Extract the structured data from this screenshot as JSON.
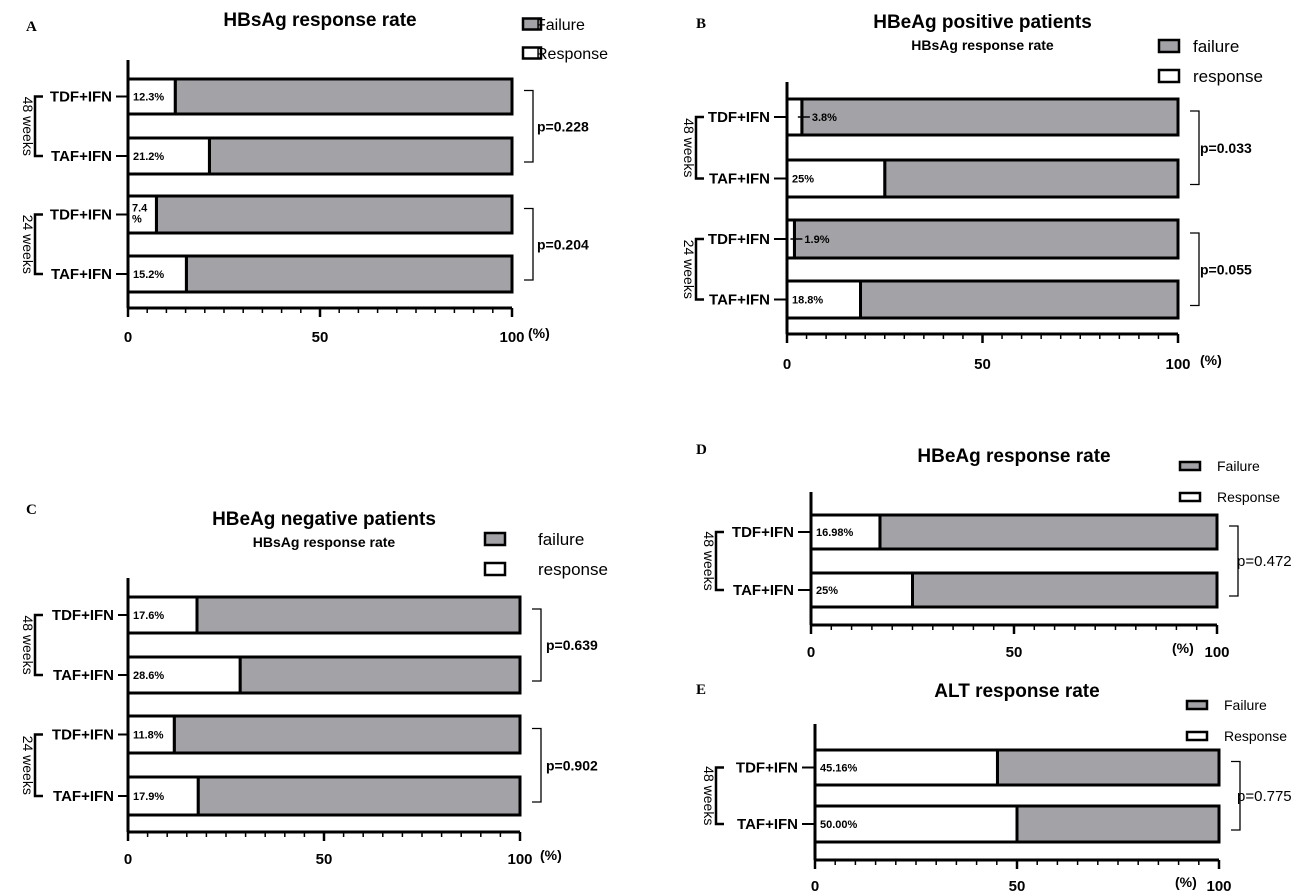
{
  "chart_data": [
    {
      "panel": "A",
      "type": "bar",
      "orientation": "horizontal",
      "stacked": true,
      "title": "HBsAg response rate",
      "subtitle": "",
      "xlabel": "",
      "unit": "(%)",
      "xlim": [
        0,
        100
      ],
      "xticks": [
        "0",
        "50",
        "100"
      ],
      "legend": {
        "position": "top-right",
        "entries": [
          {
            "label": "Failure",
            "color": "#a3a3a7"
          },
          {
            "label": "Response",
            "color": "#ffffff"
          }
        ]
      },
      "groups": [
        {
          "label": "48 weeks",
          "p_value": "p=0.228",
          "bars": [
            {
              "category": "TDF+IFN",
              "response": 12.3,
              "failure": 87.7,
              "label": "12.3%"
            },
            {
              "category": "TAF+IFN",
              "response": 21.2,
              "failure": 78.8,
              "label": "21.2%"
            }
          ]
        },
        {
          "label": "24 weeks",
          "p_value": "p=0.204",
          "bars": [
            {
              "category": "TDF+IFN",
              "response": 7.4,
              "failure": 92.6,
              "label": "7.4\n%"
            },
            {
              "category": "TAF+IFN",
              "response": 15.2,
              "failure": 84.8,
              "label": "15.2%"
            }
          ]
        }
      ]
    },
    {
      "panel": "B",
      "type": "bar",
      "orientation": "horizontal",
      "stacked": true,
      "title": "HBeAg positive patients",
      "subtitle": "HBsAg response rate",
      "xlabel": "",
      "unit": "(%)",
      "xlim": [
        0,
        100
      ],
      "xticks": [
        "0",
        "50",
        "100"
      ],
      "legend": {
        "position": "top-right",
        "entries": [
          {
            "label": "failure",
            "color": "#a3a3a7"
          },
          {
            "label": "response",
            "color": "#ffffff"
          }
        ]
      },
      "groups": [
        {
          "label": "48 weeks",
          "p_value": "p=0.033",
          "bars": [
            {
              "category": "TDF+IFN",
              "response": 3.8,
              "failure": 96.2,
              "label": "3.8%"
            },
            {
              "category": "TAF+IFN",
              "response": 25,
              "failure": 75,
              "label": "25%"
            }
          ]
        },
        {
          "label": "24 weeks",
          "p_value": "p=0.055",
          "bars": [
            {
              "category": "TDF+IFN",
              "response": 1.9,
              "failure": 98.1,
              "label": "1.9%"
            },
            {
              "category": "TAF+IFN",
              "response": 18.8,
              "failure": 81.2,
              "label": "18.8%"
            }
          ]
        }
      ]
    },
    {
      "panel": "C",
      "type": "bar",
      "orientation": "horizontal",
      "stacked": true,
      "title": "HBeAg negative patients",
      "subtitle": "HBsAg response rate",
      "xlabel": "",
      "unit": "(%)",
      "xlim": [
        0,
        100
      ],
      "xticks": [
        "0",
        "50",
        "100"
      ],
      "legend": {
        "position": "top-right",
        "entries": [
          {
            "label": "failure",
            "color": "#a3a3a7"
          },
          {
            "label": "response",
            "color": "#ffffff"
          }
        ]
      },
      "groups": [
        {
          "label": "48 weeks",
          "p_value": "p=0.639",
          "bars": [
            {
              "category": "TDF+IFN",
              "response": 17.6,
              "failure": 82.4,
              "label": "17.6%"
            },
            {
              "category": "TAF+IFN",
              "response": 28.6,
              "failure": 71.4,
              "label": "28.6%"
            }
          ]
        },
        {
          "label": "24 weeks",
          "p_value": "p=0.902",
          "bars": [
            {
              "category": "TDF+IFN",
              "response": 11.8,
              "failure": 88.2,
              "label": "11.8%"
            },
            {
              "category": "TAF+IFN",
              "response": 17.9,
              "failure": 82.1,
              "label": "17.9%"
            }
          ]
        }
      ]
    },
    {
      "panel": "D",
      "type": "bar",
      "orientation": "horizontal",
      "stacked": true,
      "title": "HBeAg response rate",
      "subtitle": "",
      "xlabel": "",
      "unit": "(%)",
      "xlim": [
        0,
        100
      ],
      "xticks": [
        "0",
        "50",
        "100"
      ],
      "legend": {
        "position": "top-right",
        "entries": [
          {
            "label": "Failure",
            "color": "#a3a3a7"
          },
          {
            "label": "Response",
            "color": "#ffffff"
          }
        ]
      },
      "groups": [
        {
          "label": "48 weeks",
          "p_value": "p=0.472",
          "bars": [
            {
              "category": "TDF+IFN",
              "response": 16.98,
              "failure": 83.02,
              "label": "16.98%"
            },
            {
              "category": "TAF+IFN",
              "response": 25,
              "failure": 75,
              "label": "25%"
            }
          ]
        }
      ]
    },
    {
      "panel": "E",
      "type": "bar",
      "orientation": "horizontal",
      "stacked": true,
      "title": "ALT response rate",
      "subtitle": "",
      "xlabel": "",
      "unit": "(%)",
      "xlim": [
        0,
        100
      ],
      "xticks": [
        "0",
        "50",
        "100"
      ],
      "legend": {
        "position": "top-right",
        "entries": [
          {
            "label": "Failure",
            "color": "#a3a3a7"
          },
          {
            "label": "Response",
            "color": "#ffffff"
          }
        ]
      },
      "groups": [
        {
          "label": "48 weeks",
          "p_value": "p=0.775",
          "bars": [
            {
              "category": "TDF+IFN",
              "response": 45.16,
              "failure": 54.84,
              "label": "45.16%"
            },
            {
              "category": "TAF+IFN",
              "response": 50.0,
              "failure": 50.0,
              "label": "50.00%"
            }
          ]
        }
      ]
    }
  ]
}
